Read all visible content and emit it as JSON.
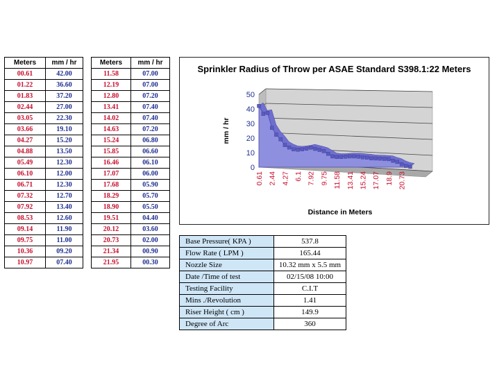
{
  "table_left": {
    "headers": [
      "Meters",
      "mm / hr"
    ],
    "rows": [
      [
        "00.61",
        "42.00"
      ],
      [
        "01.22",
        "36.60"
      ],
      [
        "01.83",
        "37.20"
      ],
      [
        "02.44",
        "27.00"
      ],
      [
        "03.05",
        "22.30"
      ],
      [
        "03.66",
        "19.10"
      ],
      [
        "04.27",
        "15.20"
      ],
      [
        "04.88",
        "13.50"
      ],
      [
        "05.49",
        "12.30"
      ],
      [
        "06.10",
        "12.00"
      ],
      [
        "06.71",
        "12.30"
      ],
      [
        "07.32",
        "12.70"
      ],
      [
        "07.92",
        "13.40"
      ],
      [
        "08.53",
        "12.60"
      ],
      [
        "09.14",
        "11.90"
      ],
      [
        "09.75",
        "11.00"
      ],
      [
        "10.36",
        "09.20"
      ],
      [
        "10.97",
        "07.40"
      ]
    ]
  },
  "table_right": {
    "headers": [
      "Meters",
      "mm / hr"
    ],
    "rows": [
      [
        "11.58",
        "07.00"
      ],
      [
        "12.19",
        "07.00"
      ],
      [
        "12.80",
        "07.20"
      ],
      [
        "13.41",
        "07.40"
      ],
      [
        "14.02",
        "07.40"
      ],
      [
        "14.63",
        "07.20"
      ],
      [
        "15.24",
        "06.80"
      ],
      [
        "15.85",
        "06.60"
      ],
      [
        "16.46",
        "06.10"
      ],
      [
        "17.07",
        "06.00"
      ],
      [
        "17.68",
        "05.90"
      ],
      [
        "18.29",
        "05.70"
      ],
      [
        "18.90",
        "05.50"
      ],
      [
        "19.51",
        "04.40"
      ],
      [
        "20.12",
        "03.60"
      ],
      [
        "20.73",
        "02.00"
      ],
      [
        "21.34",
        "00.90"
      ],
      [
        "21.95",
        "00.30"
      ]
    ]
  },
  "colors": {
    "meters_text": "#c8102e",
    "rate_text": "#1f2f8f",
    "info_key_bg": "#cfe6f7",
    "area_fill": "#8f8fe0",
    "marker": "#5a5ac0"
  },
  "chart_data": {
    "type": "area",
    "title": "Sprinkler Radius of Throw per ASAE Standard S398.1:22 Meters",
    "xlabel": "Distance in Meters",
    "ylabel": "mm / hr",
    "ylim": [
      0,
      50
    ],
    "yticks": [
      "0",
      "10",
      "20",
      "30",
      "40",
      "50"
    ],
    "xticklabels": [
      "0.61",
      "2.44",
      "4.27",
      "6.1",
      "7.92",
      "9.75",
      "11.58",
      "13.41",
      "15.24",
      "17.07",
      "18.9",
      "20.73"
    ],
    "x": [
      0.61,
      1.22,
      1.83,
      2.44,
      3.05,
      3.66,
      4.27,
      4.88,
      5.49,
      6.1,
      6.71,
      7.32,
      7.92,
      8.53,
      9.14,
      9.75,
      10.36,
      10.97,
      11.58,
      12.19,
      12.8,
      13.41,
      14.02,
      14.63,
      15.24,
      15.85,
      16.46,
      17.07,
      17.68,
      18.29,
      18.9,
      19.51,
      20.12,
      20.73,
      21.34,
      21.95
    ],
    "values": [
      42,
      36.6,
      37.2,
      27,
      22.3,
      19.1,
      15.2,
      13.5,
      12.3,
      12,
      12.3,
      12.7,
      13.4,
      12.6,
      11.9,
      11,
      9.2,
      7.4,
      7,
      7,
      7.2,
      7.4,
      7.4,
      7.2,
      6.8,
      6.6,
      6.1,
      6,
      5.9,
      5.7,
      5.5,
      4.4,
      3.6,
      2,
      0.9,
      0.3
    ],
    "grid": true,
    "three_d": true
  },
  "info": {
    "rows": [
      {
        "label": "Base Pressure( KPA  )",
        "value": "537.8"
      },
      {
        "label": "Flow Rate ( LPM )",
        "value": "165.44"
      },
      {
        "label": "Nozzle Size",
        "value": "10.32 mm x 5.5 mm"
      },
      {
        "label": "Date /Time of test",
        "value": "02/15/08  10:00"
      },
      {
        "label": "Testing Facility",
        "value": "C.I.T"
      },
      {
        "label": "Mins ./Revolution",
        "value": "1.41"
      },
      {
        "label": "Riser Height ( cm )",
        "value": "149.9"
      },
      {
        "label": "Degree of Arc",
        "value": "360"
      }
    ]
  }
}
